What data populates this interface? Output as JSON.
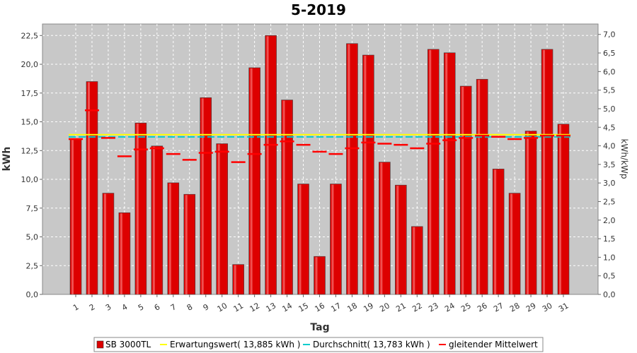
{
  "chart_data": {
    "type": "bar",
    "title": "5-2019",
    "xlabel": "Tag",
    "ylabel": "kWh",
    "ylabel_right": "kWh/kWp",
    "ylim": [
      0,
      23.5
    ],
    "ylim_right": [
      0,
      7.28
    ],
    "yticks": [
      "0,0",
      "2,5",
      "5,0",
      "7,5",
      "10,0",
      "12,5",
      "15,0",
      "17,5",
      "20,0",
      "22,5"
    ],
    "yticks_right": [
      "0,0",
      "0,5",
      "1,0",
      "1,5",
      "2,0",
      "2,5",
      "3,0",
      "3,5",
      "4,0",
      "4,5",
      "5,0",
      "5,5",
      "6,0",
      "6,5",
      "7,0"
    ],
    "grid": true,
    "legend_position": "bottom",
    "categories": [
      "1",
      "2",
      "3",
      "4",
      "5",
      "6",
      "7",
      "8",
      "9",
      "10",
      "11",
      "12",
      "13",
      "14",
      "15",
      "16",
      "17",
      "18",
      "19",
      "20",
      "21",
      "22",
      "23",
      "24",
      "25",
      "26",
      "27",
      "28",
      "29",
      "30",
      "31"
    ],
    "series": [
      {
        "name": "SB 3000TL",
        "kind": "bar",
        "color": "#dd0000",
        "values": [
          13.5,
          18.5,
          8.8,
          7.1,
          14.9,
          12.9,
          9.7,
          8.7,
          17.1,
          13.1,
          2.6,
          19.7,
          22.5,
          16.9,
          9.6,
          3.3,
          9.6,
          21.8,
          20.8,
          11.5,
          9.5,
          5.9,
          21.3,
          21.0,
          18.1,
          18.7,
          10.9,
          8.8,
          14.2,
          21.3,
          14.8
        ]
      },
      {
        "name": "Erwartungswert( 13,885 kWh )",
        "kind": "line",
        "color": "#ffff00",
        "value": 13.885
      },
      {
        "name": "Durchschnitt( 13,783 kWh )",
        "kind": "line",
        "color": "#00cccc",
        "value": 13.783
      },
      {
        "name": "gleitender Mittelwert",
        "kind": "dash",
        "color": "#ff0000",
        "values": [
          13.5,
          16.0,
          13.6,
          12.0,
          12.6,
          12.7,
          12.2,
          11.7,
          12.3,
          12.4,
          11.5,
          12.2,
          13.0,
          13.3,
          13.0,
          12.4,
          12.2,
          12.7,
          13.2,
          13.1,
          13.0,
          12.7,
          13.1,
          13.4,
          13.6,
          13.8,
          13.7,
          13.5,
          13.6,
          13.8,
          13.8
        ]
      }
    ]
  }
}
